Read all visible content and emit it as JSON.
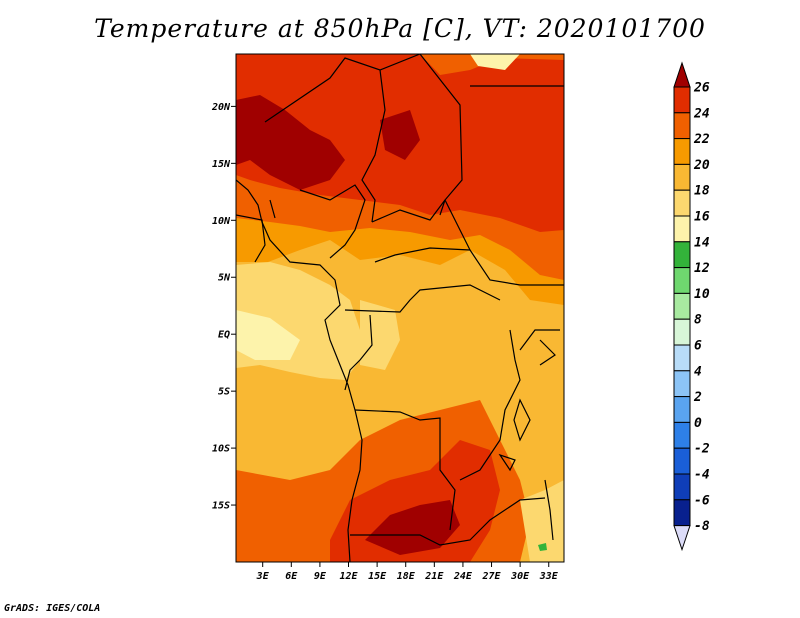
{
  "title": "Temperature at 850hPa [C], VT: 2020101700",
  "credit": "GrADS: IGES/COLA",
  "map": {
    "y_ticks": [
      "20N",
      "15N",
      "10N",
      "5N",
      "EQ",
      "5S",
      "10S",
      "15S"
    ],
    "x_ticks": [
      "3E",
      "6E",
      "9E",
      "12E",
      "15E",
      "18E",
      "21E",
      "24E",
      "27E",
      "30E",
      "33E"
    ],
    "lon_range": [
      0,
      35
    ],
    "lat_range": [
      -20,
      25
    ]
  },
  "colorbar": {
    "labels": [
      "26",
      "24",
      "22",
      "20",
      "18",
      "16",
      "14",
      "12",
      "10",
      "8",
      "6",
      "4",
      "2",
      "0",
      "-2",
      "-4",
      "-6",
      "-8"
    ],
    "colors": [
      "#a00000",
      "#e12d00",
      "#f06000",
      "#f79a00",
      "#f9b833",
      "#fcd86f",
      "#fdf3ab",
      "#33b33a",
      "#6fd86f",
      "#a8eaa0",
      "#d8f6d8",
      "#b8dcf8",
      "#8cc4f6",
      "#5aa4f0",
      "#2e80e8",
      "#1a5fd8",
      "#0f3eb8",
      "#08208e",
      "#06117a",
      "#dcdcf8"
    ]
  }
}
